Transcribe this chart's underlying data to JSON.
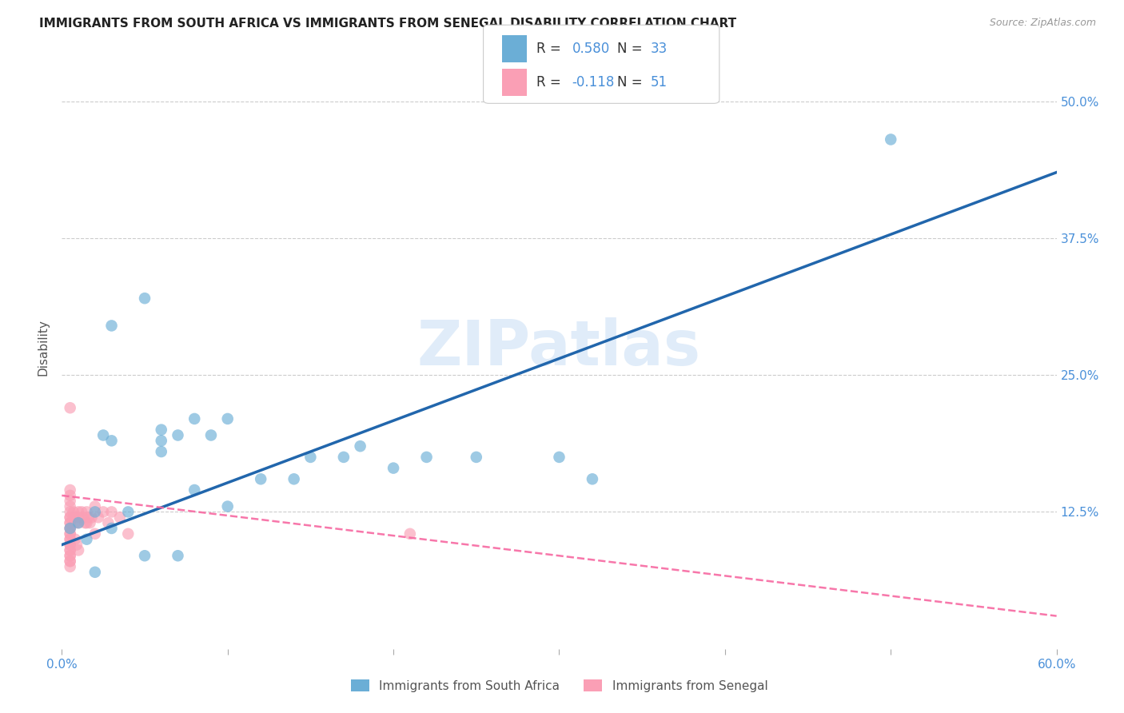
{
  "title": "IMMIGRANTS FROM SOUTH AFRICA VS IMMIGRANTS FROM SENEGAL DISABILITY CORRELATION CHART",
  "source": "Source: ZipAtlas.com",
  "ylabel": "Disability",
  "xlim": [
    0.0,
    0.6
  ],
  "ylim": [
    0.0,
    0.55
  ],
  "xticks": [
    0.0,
    0.1,
    0.2,
    0.3,
    0.4,
    0.5,
    0.6
  ],
  "xticklabels": [
    "0.0%",
    "",
    "",
    "",
    "",
    "",
    "60.0%"
  ],
  "ytick_positions": [
    0.125,
    0.25,
    0.375,
    0.5
  ],
  "ytick_labels": [
    "12.5%",
    "25.0%",
    "37.5%",
    "50.0%"
  ],
  "legend_label_blue": "Immigrants from South Africa",
  "legend_label_pink": "Immigrants from Senegal",
  "R_blue": 0.58,
  "N_blue": 33,
  "R_pink": -0.118,
  "N_pink": 51,
  "blue_color": "#6baed6",
  "pink_color": "#fa9fb5",
  "blue_line_color": "#2166ac",
  "pink_line_color": "#f768a1",
  "watermark": "ZIPatlas",
  "blue_line_x": [
    0.0,
    0.6
  ],
  "blue_line_y": [
    0.095,
    0.435
  ],
  "pink_line_x": [
    0.0,
    0.6
  ],
  "pink_line_y": [
    0.14,
    0.03
  ],
  "blue_x": [
    0.005,
    0.01,
    0.015,
    0.02,
    0.02,
    0.025,
    0.03,
    0.03,
    0.04,
    0.05,
    0.05,
    0.06,
    0.06,
    0.07,
    0.07,
    0.08,
    0.08,
    0.09,
    0.1,
    0.1,
    0.12,
    0.14,
    0.15,
    0.17,
    0.18,
    0.2,
    0.22,
    0.25,
    0.3,
    0.32,
    0.5,
    0.03,
    0.06
  ],
  "blue_y": [
    0.11,
    0.115,
    0.1,
    0.125,
    0.07,
    0.195,
    0.295,
    0.11,
    0.125,
    0.32,
    0.085,
    0.19,
    0.18,
    0.195,
    0.085,
    0.145,
    0.21,
    0.195,
    0.21,
    0.13,
    0.155,
    0.155,
    0.175,
    0.175,
    0.185,
    0.165,
    0.175,
    0.175,
    0.175,
    0.155,
    0.465,
    0.19,
    0.2
  ],
  "pink_x": [
    0.005,
    0.005,
    0.005,
    0.005,
    0.005,
    0.005,
    0.005,
    0.005,
    0.005,
    0.005,
    0.005,
    0.005,
    0.005,
    0.005,
    0.005,
    0.005,
    0.005,
    0.005,
    0.005,
    0.005,
    0.005,
    0.005,
    0.005,
    0.005,
    0.005,
    0.007,
    0.007,
    0.008,
    0.008,
    0.009,
    0.01,
    0.01,
    0.01,
    0.01,
    0.012,
    0.013,
    0.014,
    0.015,
    0.015,
    0.016,
    0.017,
    0.018,
    0.02,
    0.02,
    0.022,
    0.025,
    0.028,
    0.03,
    0.035,
    0.04,
    0.21
  ],
  "pink_y": [
    0.145,
    0.14,
    0.135,
    0.13,
    0.125,
    0.12,
    0.115,
    0.11,
    0.105,
    0.1,
    0.095,
    0.09,
    0.085,
    0.08,
    0.075,
    0.12,
    0.115,
    0.11,
    0.105,
    0.1,
    0.095,
    0.09,
    0.085,
    0.08,
    0.22,
    0.125,
    0.12,
    0.115,
    0.1,
    0.095,
    0.125,
    0.12,
    0.115,
    0.09,
    0.125,
    0.12,
    0.115,
    0.125,
    0.115,
    0.12,
    0.115,
    0.12,
    0.13,
    0.105,
    0.12,
    0.125,
    0.115,
    0.125,
    0.12,
    0.105,
    0.105
  ]
}
